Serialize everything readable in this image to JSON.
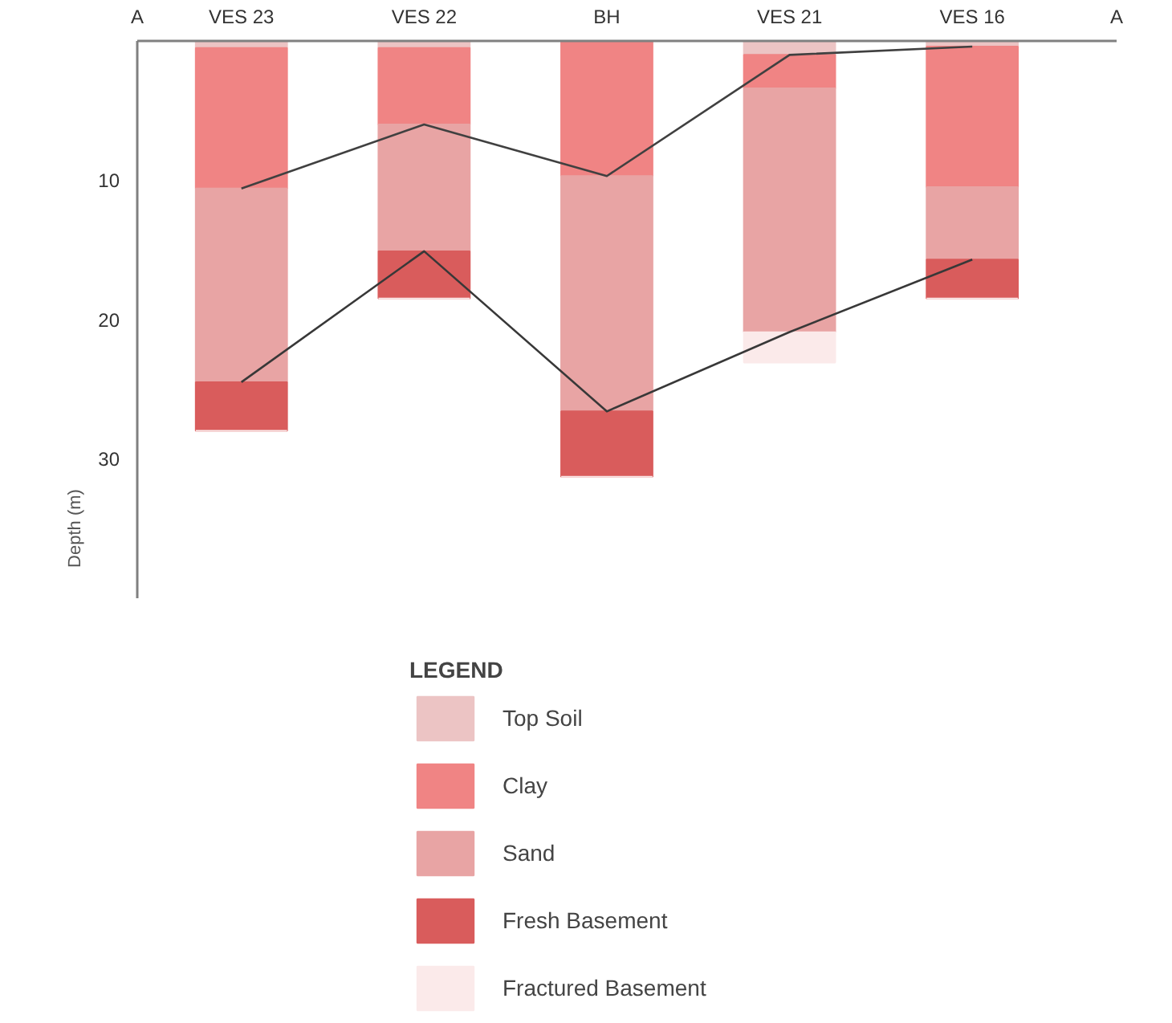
{
  "chart_data": {
    "type": "bar",
    "stacked": true,
    "ylabel": "Depth (m)",
    "legend_title": "LEGEND",
    "legend": "bottom",
    "categories": [
      "VES 23",
      "VES 22",
      "BH",
      "VES 21",
      "VES 16"
    ],
    "ylim": [
      40,
      0
    ],
    "yticks": [
      10,
      20,
      30
    ],
    "grid": false,
    "annotations": [
      "A",
      "A"
    ],
    "series": [
      {
        "name": "Top Soil",
        "color": "#ecc4c4",
        "values": [
          0.5,
          0.5,
          0,
          1.0,
          0.4
        ]
      },
      {
        "name": "Clay",
        "color": "#f08484",
        "values": [
          10.1,
          5.5,
          9.7,
          2.4,
          10.1
        ]
      },
      {
        "name": "Sand",
        "color": "#e8a4a4",
        "values": [
          13.9,
          9.1,
          16.9,
          17.5,
          5.2
        ]
      },
      {
        "name": "Fresh Basement",
        "color": "#d95c5c",
        "values": [
          3.5,
          3.4,
          4.7,
          0,
          2.8
        ]
      },
      {
        "name": "Fractured Basement",
        "color": "#fbeaea",
        "values": [
          0,
          0,
          0,
          2.2,
          0
        ]
      },
      {
        "type": "line",
        "color": "#404040",
        "values": [
          10.6,
          6.0,
          9.7,
          1.0,
          0.4
        ]
      },
      {
        "type": "line",
        "color": "#383838",
        "values": [
          24.5,
          15.1,
          26.6,
          20.9,
          15.7
        ]
      }
    ]
  }
}
